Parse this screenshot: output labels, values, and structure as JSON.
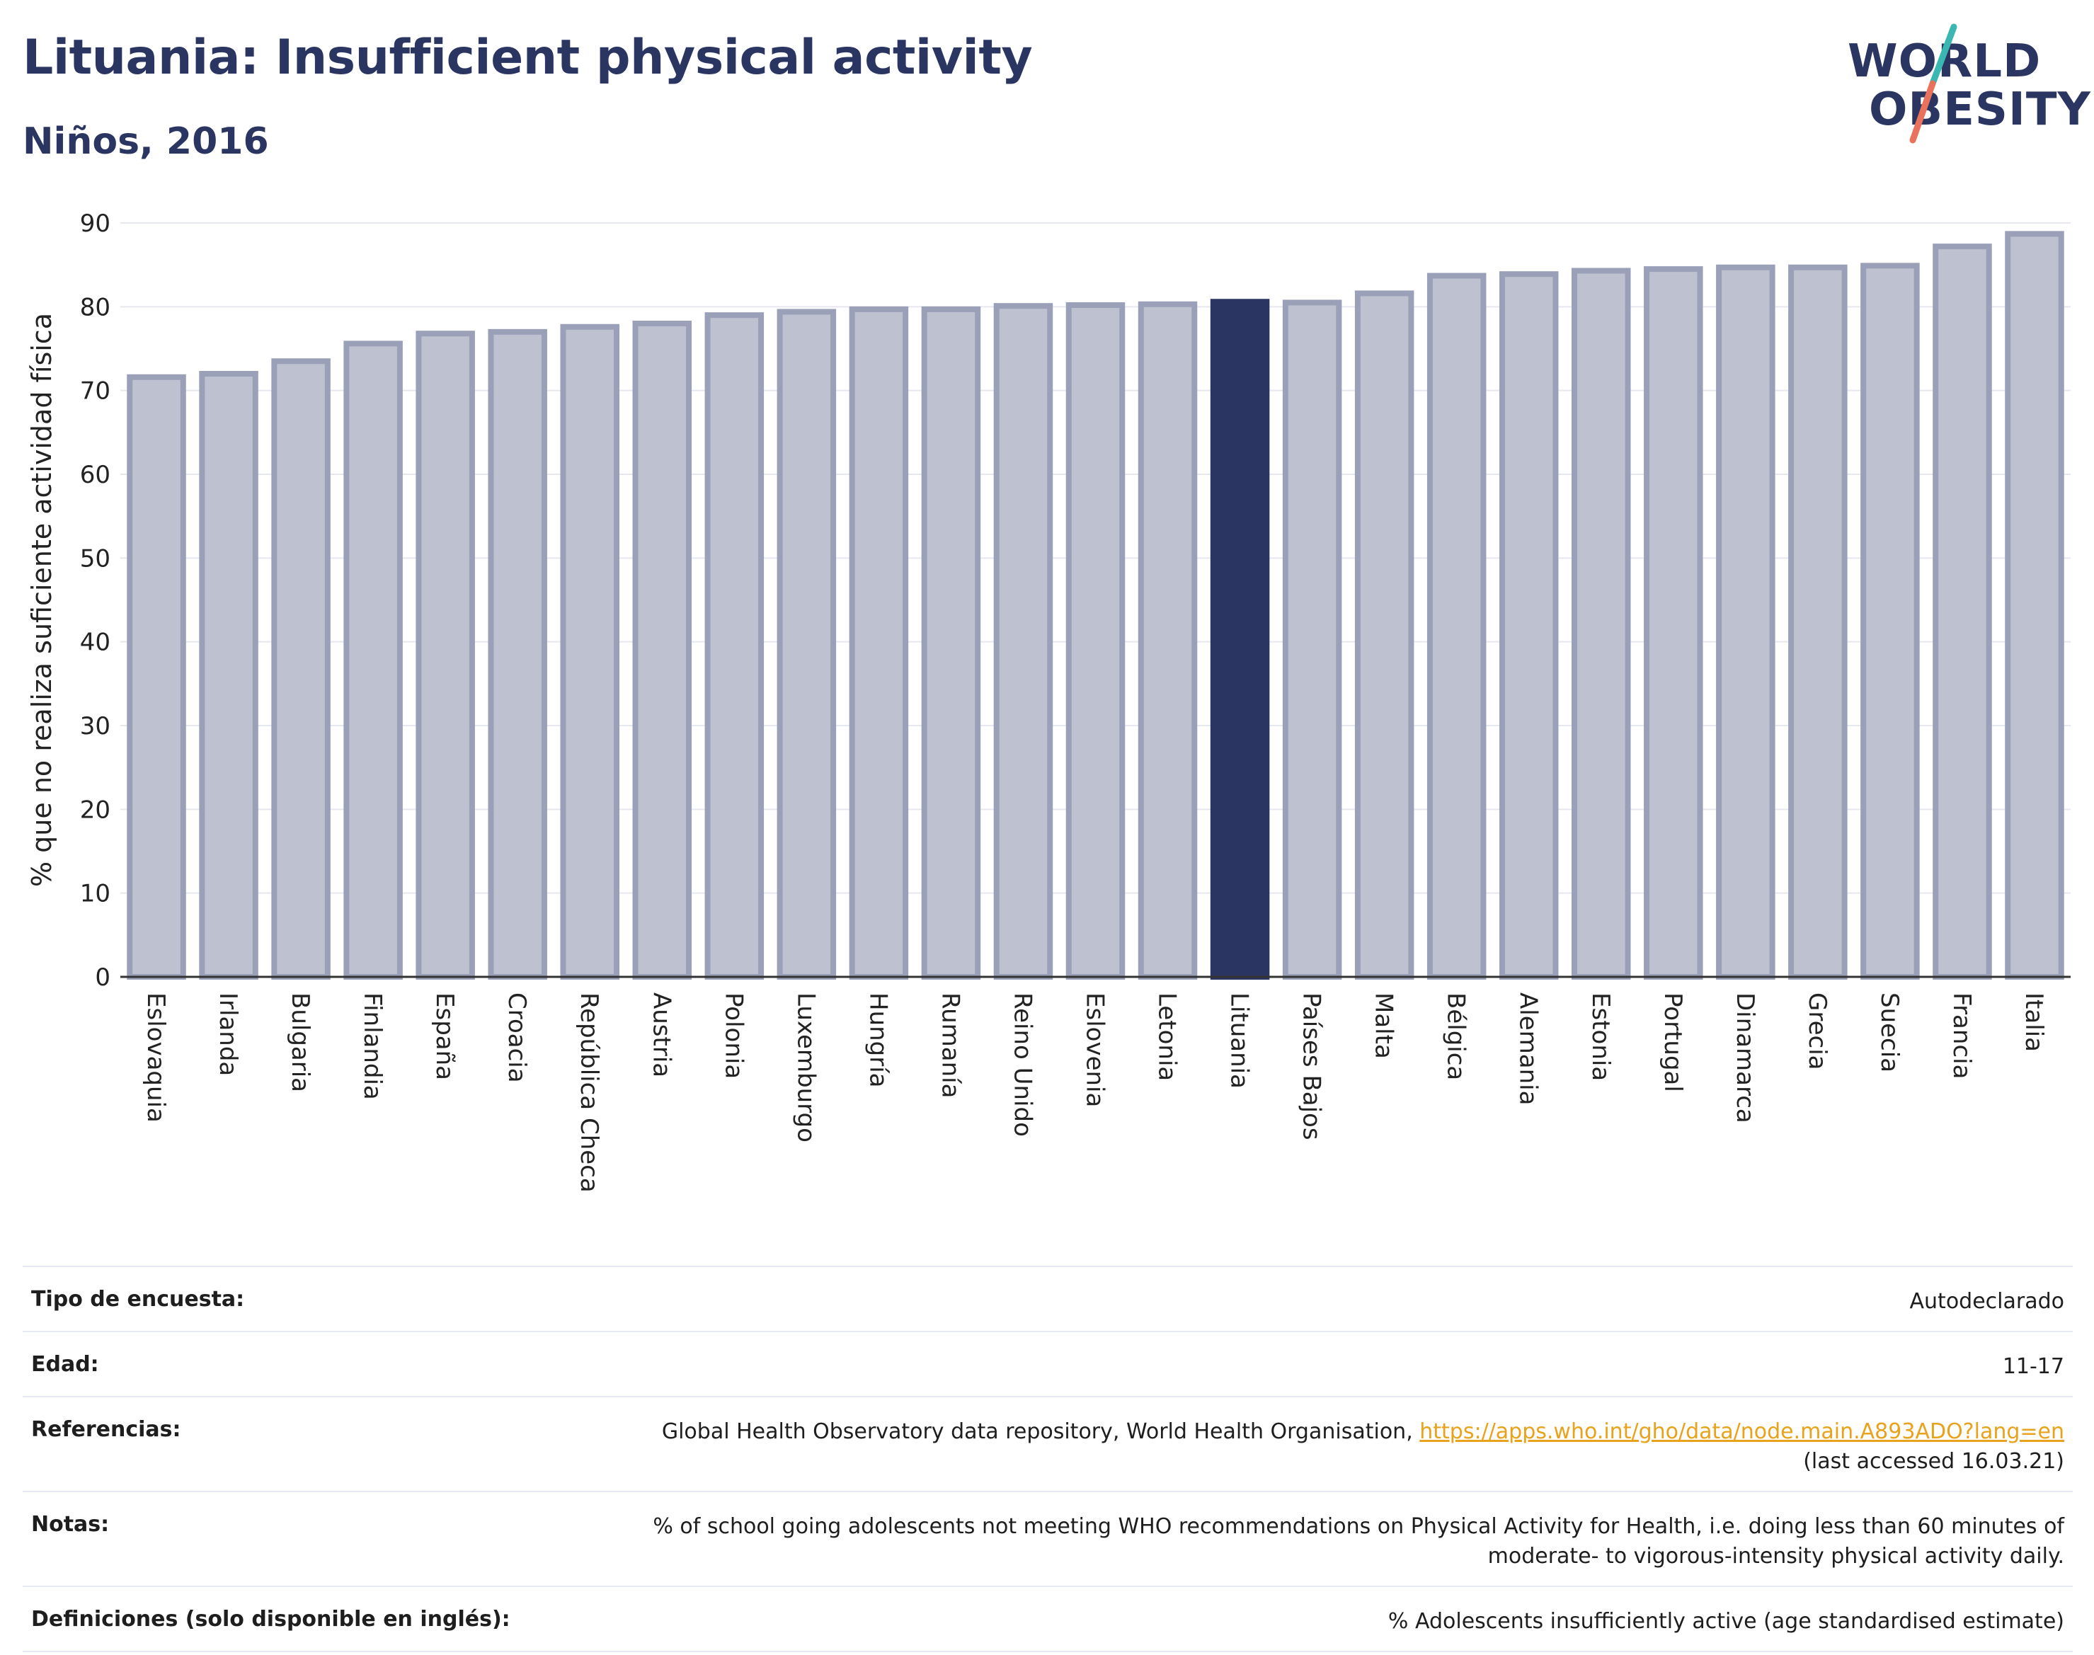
{
  "header": {
    "title": "Lituania: Insufficient physical activity",
    "subtitle": "Niños, 2016"
  },
  "logo": {
    "line1": "WORLD",
    "line2": "OBESITY",
    "colors": {
      "accent1": "#3ab7b0",
      "accent2": "#e8725c",
      "text": "#2b3561"
    }
  },
  "chart_data": {
    "type": "bar",
    "ylabel": "% que no realiza suficiente actividad física",
    "xlabel": "",
    "ylim": [
      0,
      90
    ],
    "yticks": [
      0,
      10,
      20,
      30,
      40,
      50,
      60,
      70,
      80,
      90
    ],
    "grid": true,
    "highlight": "Lituania",
    "colors": {
      "bar": "#bec1cf",
      "bar_border": "#9aa0b8",
      "highlight": "#2b3561"
    },
    "categories": [
      "Eslovaquia",
      "Irlanda",
      "Bulgaria",
      "Finlandia",
      "España",
      "Croacia",
      "República Checa",
      "Austria",
      "Polonia",
      "Luxemburgo",
      "Hungría",
      "Rumanía",
      "Reino Unido",
      "Eslovenia",
      "Letonia",
      "Lituania",
      "Países Bajos",
      "Malta",
      "Bélgica",
      "Alemania",
      "Estonia",
      "Portugal",
      "Dinamarca",
      "Grecia",
      "Suecia",
      "Francia",
      "Italia"
    ],
    "values": [
      71.6,
      72.0,
      73.5,
      75.6,
      76.8,
      77.0,
      77.6,
      78.0,
      79.0,
      79.4,
      79.7,
      79.7,
      80.1,
      80.2,
      80.3,
      80.6,
      80.5,
      81.6,
      83.7,
      83.9,
      84.3,
      84.5,
      84.7,
      84.7,
      84.9,
      87.2,
      88.7
    ]
  },
  "meta": {
    "survey_label": "Tipo de encuesta:",
    "survey_value": "Autodeclarado",
    "age_label": "Edad:",
    "age_value": "11-17",
    "refs_label": "Referencias:",
    "refs_text": "Global Health Observatory data repository, World Health Organisation, ",
    "refs_link": "https://apps.who.int/gho/data/node.main.A893ADO?lang=en",
    "refs_accessed": "(last accessed 16.03.21)",
    "notes_label": "Notas:",
    "notes_value": "% of school going adolescents not meeting WHO recommendations on Physical Activity for Health, i.e. doing less than 60 minutes of moderate- to vigorous-intensity physical activity daily.",
    "defs_label": "Definiciones (solo disponible en inglés):",
    "defs_value": "% Adolescents insufficiently active (age standardised estimate)"
  }
}
